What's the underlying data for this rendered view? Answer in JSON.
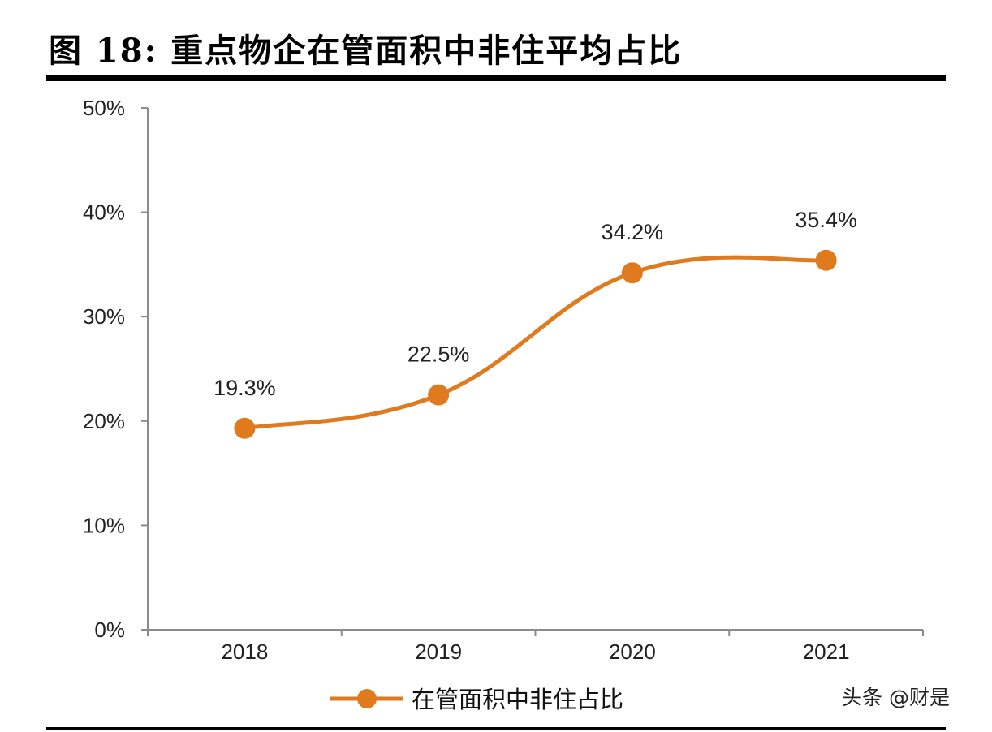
{
  "chart_data": {
    "type": "line",
    "title": "图 18:  重点物企在管面积中非住平均占比",
    "categories": [
      "2018",
      "2019",
      "2020",
      "2021"
    ],
    "series": [
      {
        "name": "在管面积中非住占比",
        "values": [
          19.3,
          22.5,
          34.2,
          35.4
        ],
        "labels": [
          "19.3%",
          "22.5%",
          "34.2%",
          "35.4%"
        ],
        "color": "#E07A1F"
      }
    ],
    "ylim": [
      0,
      50
    ],
    "yticks": [
      "0%",
      "10%",
      "20%",
      "30%",
      "40%",
      "50%"
    ],
    "xlabel": "",
    "ylabel": "",
    "grid": false,
    "legend": "bottom-center",
    "smooth": true
  },
  "watermark": "头条 @财是"
}
